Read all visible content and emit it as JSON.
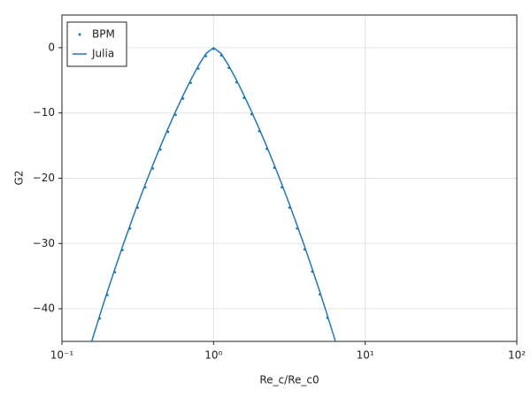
{
  "chart_data": {
    "type": "line",
    "xscale": "log",
    "grid": true,
    "legend": "upper left",
    "xlabel": "Re_c/Re_c0",
    "ylabel": "G2",
    "xlim": [
      0.1,
      100
    ],
    "ylim": [
      -45,
      5
    ],
    "xticks": [
      {
        "value": 0.1,
        "label": "10⁻¹"
      },
      {
        "value": 1,
        "label": "10⁰"
      },
      {
        "value": 10,
        "label": "10¹"
      },
      {
        "value": 100,
        "label": "10²"
      }
    ],
    "yticks": [
      0,
      {
        "value": -10,
        "label": "−10"
      },
      {
        "value": -20,
        "label": "−20"
      },
      {
        "value": -30,
        "label": "−30"
      },
      {
        "value": -40,
        "label": "−40"
      }
    ],
    "series": [
      {
        "name": "BPM",
        "style": "points",
        "color": "#1f77b4",
        "x": [
          0.1585,
          0.1778,
          0.1995,
          0.2239,
          0.2512,
          0.2818,
          0.3162,
          0.3548,
          0.3981,
          0.4467,
          0.5012,
          0.5623,
          0.631,
          0.7079,
          0.7943,
          0.8913,
          1,
          1.122,
          1.259,
          1.413,
          1.585,
          1.778,
          1.995,
          2.239,
          2.512,
          2.818,
          3.162,
          3.548,
          3.981,
          4.467,
          5.012,
          5.623
        ],
        "values": [
          -45.2,
          -41.5,
          -37.9,
          -34.4,
          -31,
          -27.7,
          -24.5,
          -21.4,
          -18.5,
          -15.6,
          -12.9,
          -10.3,
          -7.8,
          -5.4,
          -3.2,
          -1.3,
          -0.2,
          -1.2,
          -3.1,
          -5.3,
          -7.7,
          -10.2,
          -12.8,
          -15.5,
          -18.4,
          -21.4,
          -24.5,
          -27.7,
          -30.9,
          -34.3,
          -37.8,
          -41.4
        ]
      },
      {
        "name": "Julia",
        "style": "line",
        "color": "#1f77b4",
        "x": [
          0.1413,
          0.1585,
          0.1778,
          0.1995,
          0.2239,
          0.2512,
          0.2818,
          0.3162,
          0.3548,
          0.3981,
          0.4467,
          0.5012,
          0.5623,
          0.631,
          0.7079,
          0.7943,
          0.8913,
          1,
          1.122,
          1.259,
          1.413,
          1.585,
          1.778,
          1.995,
          2.239,
          2.512,
          2.818,
          3.162,
          3.548,
          3.981,
          4.467,
          5.012,
          5.623,
          6.31,
          7.079
        ],
        "values": [
          -48.54,
          -44.71,
          -40.98,
          -37.35,
          -33.85,
          -30.44,
          -27.16,
          -23.98,
          -20.91,
          -17.95,
          -15.1,
          -12.37,
          -9.76,
          -7.27,
          -4.92,
          -2.75,
          -0.9,
          0,
          -0.9,
          -2.75,
          -4.92,
          -7.27,
          -9.76,
          -12.37,
          -15.1,
          -17.95,
          -20.91,
          -23.98,
          -27.16,
          -30.44,
          -33.85,
          -37.35,
          -40.98,
          -44.71,
          -48.54
        ]
      }
    ]
  }
}
